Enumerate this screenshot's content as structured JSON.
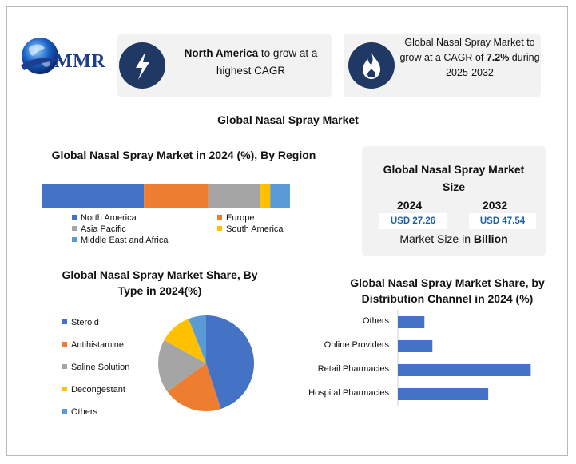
{
  "logo": {
    "text": "MMR"
  },
  "card_left": {
    "highlight": "North America",
    "text_rest": " to grow at a",
    "line2": "highest CAGR",
    "icon": "lightning-bolt-icon"
  },
  "card_right": {
    "line1": "Global Nasal Spray Market to",
    "line2_prefix": "grow at a CAGR of ",
    "line2_highlight": "7.2%",
    "line2_suffix": " during",
    "line3": "2025-2032",
    "icon": "flame-icon"
  },
  "title": "Global Nasal Spray Market",
  "market_size": {
    "title_line1": "Global Nasal Spray Market",
    "title_line2": "Size",
    "year1": "2024",
    "value1": "USD 27.26",
    "year2": "2032",
    "value2": "USD 47.54",
    "foot_prefix": "Market Size in ",
    "foot_bold": "Billion"
  },
  "colors": {
    "blue": "#4472c4",
    "orange": "#ed7d31",
    "gray": "#a5a5a5",
    "yellow": "#ffc000",
    "lightblue": "#5b9bd5",
    "navy": "#1f3864"
  },
  "chart_data": [
    {
      "type": "bar",
      "title": "Global Nasal Spray Market in 2024 (%), By Region",
      "stacked": true,
      "orientation": "horizontal",
      "series": [
        {
          "name": "North America",
          "values": [
            41
          ],
          "color": "#4472c4"
        },
        {
          "name": "Europe",
          "values": [
            26
          ],
          "color": "#ed7d31"
        },
        {
          "name": "Asia Pacific",
          "values": [
            21
          ],
          "color": "#a5a5a5"
        },
        {
          "name": "South America",
          "values": [
            4
          ],
          "color": "#ffc000"
        },
        {
          "name": "Middle East and Africa",
          "values": [
            8
          ],
          "color": "#5b9bd5"
        }
      ],
      "legend": "bottom"
    },
    {
      "type": "pie",
      "title_line1": "Global Nasal Spray Market Share, By",
      "title_line2": "Type in 2024(%)",
      "categories": [
        "Steroid",
        "Antihistamine",
        "Saline Solution",
        "Decongestant",
        "Others"
      ],
      "values": [
        45,
        20,
        18,
        11,
        6
      ],
      "colors": [
        "#4472c4",
        "#ed7d31",
        "#a5a5a5",
        "#ffc000",
        "#5b9bd5"
      ],
      "legend": "left"
    },
    {
      "type": "bar",
      "orientation": "horizontal",
      "title_line1": "Global Nasal Spray Market Share, by",
      "title_line2": "Distribution Channel in 2024 (%)",
      "categories": [
        "Others",
        "Online Providers",
        "Retail Pharmacies",
        "Hospital Pharmacies"
      ],
      "values": [
        10,
        13,
        50,
        34
      ],
      "xlim": [
        0,
        55
      ],
      "color": "#4472c4"
    }
  ]
}
